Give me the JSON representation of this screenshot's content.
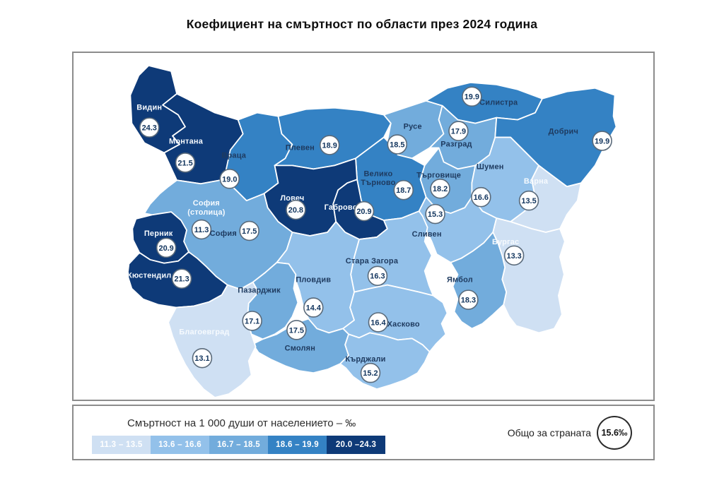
{
  "title": "Коефициент на смъртност по области през 2024 година",
  "map": {
    "regions": [
      {
        "id": "vidin",
        "name": "Видин",
        "value": "24.3"
      },
      {
        "id": "montana",
        "name": "Монтана",
        "value": "21.5"
      },
      {
        "id": "vratsa",
        "name": "Враца",
        "value": "19.0"
      },
      {
        "id": "pleven",
        "name": "Плевен",
        "value": "18.9"
      },
      {
        "id": "ruse",
        "name": "Русе",
        "value": "18.5"
      },
      {
        "id": "silistra",
        "name": "Силистра",
        "value": "19.9"
      },
      {
        "id": "razgrad",
        "name": "Разград",
        "value": "17.9"
      },
      {
        "id": "dobrich",
        "name": "Добрич",
        "value": "19.9"
      },
      {
        "id": "veliko-tarnovo",
        "name": "Велико Търново",
        "value": "18.7"
      },
      {
        "id": "targovishte",
        "name": "Търговище",
        "value": "18.2"
      },
      {
        "id": "shumen",
        "name": "Шумен",
        "value": "16.6"
      },
      {
        "id": "varna",
        "name": "Варна",
        "value": "13.5"
      },
      {
        "id": "lovech",
        "name": "Ловеч",
        "value": "20.8"
      },
      {
        "id": "gabrovo",
        "name": "Габрово",
        "value": "20.9"
      },
      {
        "id": "sofia-city",
        "name": "София (столица)",
        "value": "11.3"
      },
      {
        "id": "sofia",
        "name": "София",
        "value": "17.5"
      },
      {
        "id": "pernik",
        "name": "Перник",
        "value": "20.9"
      },
      {
        "id": "kyustendil",
        "name": "Кюстендил",
        "value": "21.3"
      },
      {
        "id": "sliven",
        "name": "Сливен",
        "value": "15.3"
      },
      {
        "id": "burgas",
        "name": "Бургас",
        "value": "13.3"
      },
      {
        "id": "stara-zagora",
        "name": "Стара Загора",
        "value": "16.3"
      },
      {
        "id": "plovdiv",
        "name": "Пловдив",
        "value": "14.4"
      },
      {
        "id": "pazardzhik",
        "name": "Пазарджик",
        "value": "17.1"
      },
      {
        "id": "yambol",
        "name": "Ямбол",
        "value": "18.3"
      },
      {
        "id": "haskovo",
        "name": "Хасково",
        "value": "16.4"
      },
      {
        "id": "smolyan",
        "name": "Смолян",
        "value": "17.5"
      },
      {
        "id": "kardzhali",
        "name": "Кърджали",
        "value": "15.2"
      },
      {
        "id": "blagoevgrad",
        "name": "Благоевград",
        "value": "13.1"
      }
    ]
  },
  "legend": {
    "title": "Смъртност на 1 000 души от населението – ‰",
    "bins": [
      {
        "range": "11.3 – 13.5",
        "color": "#cfe0f3",
        "max": 13.5
      },
      {
        "range": "13.6 – 16.6",
        "color": "#93c1ea",
        "max": 16.6
      },
      {
        "range": "16.7 – 18.5",
        "color": "#72acdc",
        "max": 18.5
      },
      {
        "range": "18.6 – 19.9",
        "color": "#3482c4",
        "max": 19.9
      },
      {
        "range": "20.0 –24.3",
        "color": "#0e3a78",
        "max": 24.3
      }
    ],
    "total_label": "Общо за страната",
    "total_value": "15.6‰"
  },
  "chart_data": {
    "type": "choropleth",
    "title": "Коефициент на смъртност по области през 2024 година",
    "unit": "смъртност на 1 000 души от населението (‰)",
    "country_total": 15.6,
    "bins": [
      "11.3 – 13.5",
      "13.6 – 16.6",
      "16.7 – 18.5",
      "18.6 – 19.9",
      "20.0 – 24.3"
    ],
    "regions": [
      {
        "name": "Видин",
        "value": 24.3
      },
      {
        "name": "Монтана",
        "value": 21.5
      },
      {
        "name": "Враца",
        "value": 19.0
      },
      {
        "name": "Плевен",
        "value": 18.9
      },
      {
        "name": "Русе",
        "value": 18.5
      },
      {
        "name": "Силистра",
        "value": 19.9
      },
      {
        "name": "Разград",
        "value": 17.9
      },
      {
        "name": "Добрич",
        "value": 19.9
      },
      {
        "name": "Велико Търново",
        "value": 18.7
      },
      {
        "name": "Търговище",
        "value": 18.2
      },
      {
        "name": "Шумен",
        "value": 16.6
      },
      {
        "name": "Варна",
        "value": 13.5
      },
      {
        "name": "Ловеч",
        "value": 20.8
      },
      {
        "name": "Габрово",
        "value": 20.9
      },
      {
        "name": "София (столица)",
        "value": 11.3
      },
      {
        "name": "София",
        "value": 17.5
      },
      {
        "name": "Перник",
        "value": 20.9
      },
      {
        "name": "Кюстендил",
        "value": 21.3
      },
      {
        "name": "Сливен",
        "value": 15.3
      },
      {
        "name": "Бургас",
        "value": 13.3
      },
      {
        "name": "Стара Загора",
        "value": 16.3
      },
      {
        "name": "Пловдив",
        "value": 14.4
      },
      {
        "name": "Пазарджик",
        "value": 17.1
      },
      {
        "name": "Ямбол",
        "value": 18.3
      },
      {
        "name": "Хасково",
        "value": 16.4
      },
      {
        "name": "Смолян",
        "value": 17.5
      },
      {
        "name": "Кърджали",
        "value": 15.2
      },
      {
        "name": "Благоевград",
        "value": 13.1
      }
    ]
  }
}
